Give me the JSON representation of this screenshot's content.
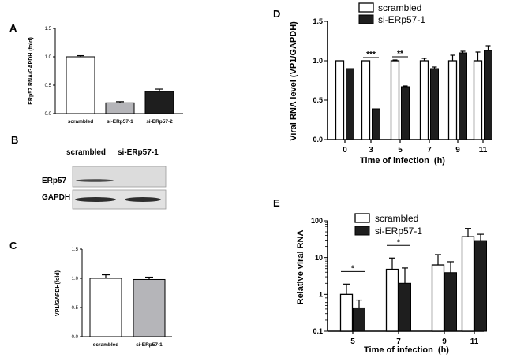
{
  "panel_labels": {
    "A": "A",
    "B": "B",
    "C": "C",
    "D": "D",
    "E": "E"
  },
  "blot": {
    "col_labels": [
      "scrambled",
      "si-ERp57-1"
    ],
    "row_labels": [
      "ERp57",
      "GAPDH"
    ]
  },
  "chart_data": [
    {
      "panel": "A",
      "type": "bar",
      "categories": [
        "scrambled",
        "si-ERp57-1",
        "si-ERp57-2"
      ],
      "values": [
        1.0,
        0.19,
        0.39
      ],
      "errors": [
        0.02,
        0.02,
        0.04
      ],
      "colors": [
        "#ffffff",
        "#b5b5b9",
        "#1e1e1e"
      ],
      "ylabel": "ERp57 RNA/GAPDH (fold)",
      "ylim": [
        0,
        1.5
      ],
      "yticks": [
        "0.0",
        "0.5",
        "1.0",
        "1.5"
      ]
    },
    {
      "panel": "C",
      "type": "bar",
      "categories": [
        "scrambled",
        "si-ERp57-1"
      ],
      "values": [
        1.0,
        0.98
      ],
      "errors": [
        0.06,
        0.04
      ],
      "colors": [
        "#ffffff",
        "#b5b5b9"
      ],
      "ylabel": "VP1/GAPDH(fold)",
      "ylim": [
        0,
        1.5
      ],
      "yticks": [
        "0.0",
        "0.5",
        "1.0",
        "1.5"
      ]
    },
    {
      "panel": "D",
      "type": "bar",
      "categories": [
        "0",
        "3",
        "5",
        "7",
        "9",
        "11"
      ],
      "series": [
        {
          "name": "scrambled",
          "values": [
            1.0,
            1.0,
            1.0,
            1.0,
            1.0,
            1.0
          ],
          "errors": [
            0.0,
            0.0,
            0.01,
            0.03,
            0.07,
            0.11
          ],
          "color": "#ffffff"
        },
        {
          "name": "si-ERp57-1",
          "values": [
            0.9,
            0.39,
            0.67,
            0.9,
            1.1,
            1.13
          ],
          "errors": [
            0.0,
            0.0,
            0.01,
            0.02,
            0.02,
            0.06
          ],
          "color": "#1e1e1e"
        }
      ],
      "ylabel": "Viral RNA level (VP1/GAPDH)",
      "xlabel": "Time of infection  (h)",
      "ylim": [
        0,
        1.5
      ],
      "yticks": [
        "0.0",
        "0.5",
        "1.0",
        "1.5"
      ],
      "significance": [
        {
          "category": "3",
          "label": "***"
        },
        {
          "category": "5",
          "label": "**"
        }
      ],
      "legend": "top-left"
    },
    {
      "panel": "E",
      "type": "bar",
      "categories": [
        "5",
        "7",
        "9",
        "11"
      ],
      "series": [
        {
          "name": "scrambled",
          "values": [
            1.0,
            4.8,
            6.3,
            37.0
          ],
          "upper": [
            1.9,
            9.7,
            12.0,
            62.0
          ],
          "color": "#ffffff"
        },
        {
          "name": "si-ERp57-1",
          "values": [
            0.43,
            2.0,
            3.9,
            29.0
          ],
          "upper": [
            0.7,
            5.2,
            7.7,
            43.0
          ],
          "color": "#1e1e1e"
        }
      ],
      "ylabel": "Relative viral RNA",
      "xlabel": "Time of infection  (h)",
      "scale": "log",
      "ylim": [
        0.1,
        100
      ],
      "yticks": [
        "0.1",
        "1",
        "10",
        "100"
      ],
      "significance": [
        {
          "category": "5",
          "label": "*"
        },
        {
          "category": "7",
          "label": "*"
        }
      ],
      "legend": "top-left"
    }
  ]
}
